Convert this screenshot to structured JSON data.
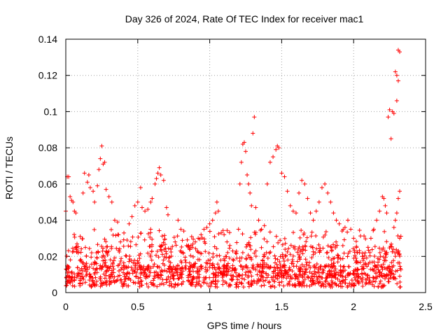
{
  "chart_data": {
    "type": "scatter",
    "title": "Day 326 of 2024, Rate Of TEC Index for receiver mac1",
    "xlabel": "GPS time / hours",
    "ylabel": "ROTI / TECUs",
    "xlim": [
      0,
      2.5
    ],
    "ylim": [
      0,
      0.14
    ],
    "xticks": [
      0,
      0.5,
      1,
      1.5,
      2,
      2.5
    ],
    "xtick_labels": [
      "0",
      "0.5",
      "1",
      "1.5",
      "2",
      "2.5"
    ],
    "yticks": [
      0,
      0.02,
      0.04,
      0.06,
      0.08,
      0.1,
      0.12,
      0.14
    ],
    "ytick_labels": [
      "0",
      "0.02",
      "0.04",
      "0.06",
      "0.08",
      "0.1",
      "0.12",
      "0.14"
    ],
    "grid": true,
    "marker": "plus",
    "color": "#ff0000",
    "series": [
      {
        "name": "ROTI",
        "points": [
          [
            0.0,
            0.045
          ],
          [
            0.01,
            0.064
          ],
          [
            0.02,
            0.064
          ],
          [
            0.03,
            0.053
          ],
          [
            0.04,
            0.051
          ],
          [
            0.05,
            0.05
          ],
          [
            0.06,
            0.045
          ],
          [
            0.07,
            0.044
          ],
          [
            0.1,
            0.031
          ],
          [
            0.12,
            0.055
          ],
          [
            0.13,
            0.066
          ],
          [
            0.15,
            0.061
          ],
          [
            0.16,
            0.065
          ],
          [
            0.17,
            0.058
          ],
          [
            0.19,
            0.056
          ],
          [
            0.2,
            0.05
          ],
          [
            0.22,
            0.059
          ],
          [
            0.23,
            0.068
          ],
          [
            0.24,
            0.074
          ],
          [
            0.25,
            0.081
          ],
          [
            0.26,
            0.071
          ],
          [
            0.27,
            0.072
          ],
          [
            0.28,
            0.057
          ],
          [
            0.3,
            0.053
          ],
          [
            0.32,
            0.05
          ],
          [
            0.34,
            0.04
          ],
          [
            0.36,
            0.039
          ],
          [
            0.38,
            0.028
          ],
          [
            0.44,
            0.038
          ],
          [
            0.46,
            0.042
          ],
          [
            0.48,
            0.048
          ],
          [
            0.5,
            0.05
          ],
          [
            0.52,
            0.058
          ],
          [
            0.53,
            0.047
          ],
          [
            0.55,
            0.045
          ],
          [
            0.57,
            0.046
          ],
          [
            0.59,
            0.05
          ],
          [
            0.6,
            0.052
          ],
          [
            0.62,
            0.06
          ],
          [
            0.63,
            0.063
          ],
          [
            0.64,
            0.066
          ],
          [
            0.65,
            0.069
          ],
          [
            0.66,
            0.065
          ],
          [
            0.68,
            0.062
          ],
          [
            0.7,
            0.047
          ],
          [
            0.71,
            0.043
          ],
          [
            0.73,
            0.024
          ],
          [
            0.76,
            0.028
          ],
          [
            0.78,
            0.04
          ],
          [
            0.8,
            0.035
          ],
          [
            0.82,
            0.034
          ],
          [
            0.84,
            0.026
          ],
          [
            0.86,
            0.024
          ],
          [
            0.88,
            0.025
          ],
          [
            0.9,
            0.028
          ],
          [
            0.92,
            0.03
          ],
          [
            0.94,
            0.032
          ],
          [
            0.96,
            0.035
          ],
          [
            0.98,
            0.036
          ],
          [
            1.0,
            0.038
          ],
          [
            1.02,
            0.04
          ],
          [
            1.04,
            0.044
          ],
          [
            1.05,
            0.05
          ],
          [
            1.06,
            0.045
          ],
          [
            1.08,
            0.033
          ],
          [
            1.1,
            0.032
          ],
          [
            1.12,
            0.028
          ],
          [
            1.14,
            0.026
          ],
          [
            1.16,
            0.023
          ],
          [
            1.18,
            0.022
          ],
          [
            1.2,
            0.035
          ],
          [
            1.21,
            0.06
          ],
          [
            1.22,
            0.072
          ],
          [
            1.23,
            0.082
          ],
          [
            1.24,
            0.083
          ],
          [
            1.25,
            0.078
          ],
          [
            1.26,
            0.065
          ],
          [
            1.27,
            0.06
          ],
          [
            1.28,
            0.055
          ],
          [
            1.29,
            0.048
          ],
          [
            1.3,
            0.088
          ],
          [
            1.31,
            0.097
          ],
          [
            1.32,
            0.047
          ],
          [
            1.34,
            0.04
          ],
          [
            1.36,
            0.035
          ],
          [
            1.38,
            0.037
          ],
          [
            1.4,
            0.06
          ],
          [
            1.42,
            0.072
          ],
          [
            1.44,
            0.075
          ],
          [
            1.46,
            0.079
          ],
          [
            1.47,
            0.081
          ],
          [
            1.48,
            0.08
          ],
          [
            1.5,
            0.066
          ],
          [
            1.52,
            0.064
          ],
          [
            1.54,
            0.056
          ],
          [
            1.56,
            0.048
          ],
          [
            1.58,
            0.045
          ],
          [
            1.6,
            0.044
          ],
          [
            1.62,
            0.055
          ],
          [
            1.64,
            0.062
          ],
          [
            1.66,
            0.06
          ],
          [
            1.68,
            0.052
          ],
          [
            1.7,
            0.044
          ],
          [
            1.72,
            0.04
          ],
          [
            1.74,
            0.045
          ],
          [
            1.76,
            0.05
          ],
          [
            1.78,
            0.058
          ],
          [
            1.8,
            0.06
          ],
          [
            1.82,
            0.055
          ],
          [
            1.84,
            0.05
          ],
          [
            1.86,
            0.044
          ],
          [
            1.88,
            0.04
          ],
          [
            1.9,
            0.038
          ],
          [
            1.92,
            0.034
          ],
          [
            1.94,
            0.036
          ],
          [
            1.96,
            0.04
          ],
          [
            1.98,
            0.035
          ],
          [
            2.0,
            0.03
          ],
          [
            2.02,
            0.025
          ],
          [
            2.04,
            0.022
          ],
          [
            2.06,
            0.02
          ],
          [
            2.08,
            0.022
          ],
          [
            2.1,
            0.025
          ],
          [
            2.12,
            0.03
          ],
          [
            2.14,
            0.035
          ],
          [
            2.16,
            0.04
          ],
          [
            2.18,
            0.045
          ],
          [
            2.2,
            0.053
          ],
          [
            2.21,
            0.052
          ],
          [
            2.22,
            0.048
          ],
          [
            2.23,
            0.044
          ],
          [
            2.24,
            0.097
          ],
          [
            2.25,
            0.101
          ],
          [
            2.26,
            0.085
          ],
          [
            2.27,
            0.1
          ],
          [
            2.28,
            0.099
          ],
          [
            2.29,
            0.122
          ],
          [
            2.3,
            0.12
          ],
          [
            2.31,
            0.117
          ],
          [
            2.3,
            0.106
          ],
          [
            2.31,
            0.134
          ],
          [
            2.32,
            0.133
          ],
          [
            2.32,
            0.056
          ],
          [
            2.31,
            0.052
          ],
          [
            2.3,
            0.044
          ],
          [
            2.29,
            0.04
          ],
          [
            2.28,
            0.036
          ],
          [
            2.32,
            0.03
          ]
        ]
      }
    ]
  }
}
